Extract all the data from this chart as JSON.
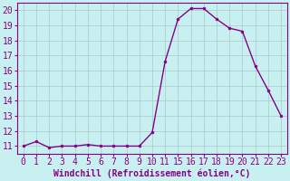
{
  "hours": [
    0,
    1,
    2,
    3,
    4,
    5,
    6,
    7,
    8,
    9,
    10,
    11,
    15,
    16,
    17,
    18,
    19,
    20,
    21,
    22,
    23
  ],
  "y": [
    11,
    11.3,
    10.9,
    11.0,
    11.0,
    11.1,
    11.0,
    11.0,
    11.0,
    11.0,
    11.9,
    16.6,
    19.4,
    20.1,
    20.1,
    19.4,
    18.8,
    18.6,
    16.3,
    14.7,
    13.0
  ],
  "xlabels": [
    "0",
    "1",
    "2",
    "3",
    "4",
    "5",
    "6",
    "7",
    "8",
    "9",
    "10",
    "11",
    "15",
    "16",
    "17",
    "18",
    "19",
    "20",
    "21",
    "22",
    "23"
  ],
  "yticks": [
    11,
    12,
    13,
    14,
    15,
    16,
    17,
    18,
    19,
    20
  ],
  "ylim": [
    10.5,
    20.5
  ],
  "line_color": "#880088",
  "marker_color": "#880088",
  "bg_color": "#C8F0F0",
  "grid_color": "#A8C8C8",
  "xlabel": "Windchill (Refroidissement éolien,°C)",
  "font_color": "#880088",
  "tick_fontsize": 7,
  "xlabel_fontsize": 7,
  "linewidth": 1.0,
  "markersize": 2.0
}
